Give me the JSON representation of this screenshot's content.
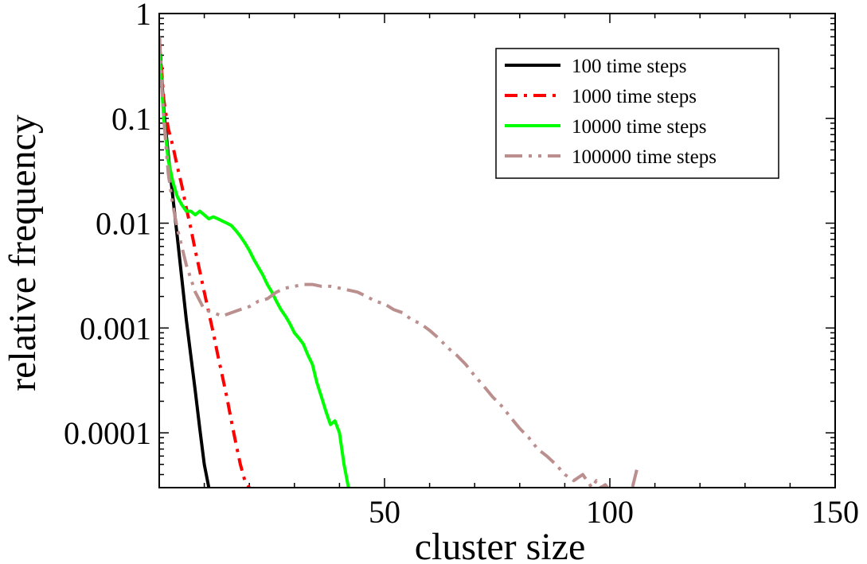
{
  "chart_data": {
    "type": "line",
    "title": "",
    "xlabel": "cluster size",
    "ylabel": "relative frequency",
    "xlim": [
      0,
      150
    ],
    "ylim": [
      3e-05,
      1
    ],
    "yscale": "log",
    "x_ticks": [
      50,
      100,
      150
    ],
    "x_tick_labels": [
      "50",
      "100",
      "150"
    ],
    "y_ticks": [
      0.0001,
      0.001,
      0.01,
      0.1,
      1
    ],
    "y_tick_labels": [
      "0.0001",
      "0.001",
      "0.01",
      "0.1",
      "1"
    ],
    "grid": false,
    "legend_position": "top-right",
    "series": [
      {
        "name": "100 time steps",
        "color": "#000000",
        "dash": "solid",
        "x": [
          0,
          1,
          2,
          3,
          4,
          5,
          6,
          7,
          8,
          9,
          10,
          11
        ],
        "y": [
          0.6,
          0.12,
          0.045,
          0.018,
          0.0075,
          0.003,
          0.0012,
          0.00055,
          0.00025,
          0.00011,
          5e-05,
          3e-05
        ]
      },
      {
        "name": "1000 time steps",
        "color": "#ff0000",
        "dash": "dashdot",
        "x": [
          0,
          1,
          2,
          3,
          4,
          5,
          6,
          7,
          8,
          9,
          10,
          11,
          12,
          13,
          14,
          15,
          16,
          17,
          18,
          19,
          20
        ],
        "y": [
          0.6,
          0.15,
          0.08,
          0.055,
          0.035,
          0.023,
          0.014,
          0.009,
          0.0055,
          0.0035,
          0.0022,
          0.0014,
          0.0009,
          0.00055,
          0.00035,
          0.00022,
          0.00013,
          8e-05,
          5e-05,
          3.5e-05,
          3e-05
        ]
      },
      {
        "name": "10000 time steps",
        "color": "#00ff00",
        "dash": "solid",
        "x": [
          0,
          1,
          2,
          3,
          4,
          5,
          6,
          7,
          8,
          9,
          10,
          11,
          12,
          13,
          14,
          15,
          16,
          17,
          18,
          19,
          20,
          21,
          22,
          23,
          24,
          25,
          26,
          27,
          28,
          29,
          30,
          31,
          32,
          33,
          34,
          35,
          36,
          37,
          38,
          39,
          40,
          41,
          42
        ],
        "y": [
          0.5,
          0.1,
          0.04,
          0.025,
          0.018,
          0.015,
          0.013,
          0.013,
          0.012,
          0.013,
          0.012,
          0.011,
          0.0115,
          0.011,
          0.0105,
          0.01,
          0.0095,
          0.0085,
          0.0075,
          0.0065,
          0.0055,
          0.0045,
          0.0038,
          0.0032,
          0.0026,
          0.0022,
          0.0018,
          0.0015,
          0.0013,
          0.0011,
          0.0009,
          0.0008,
          0.0007,
          0.00055,
          0.00045,
          0.0003,
          0.00022,
          0.00016,
          0.00012,
          0.00013,
          0.0001,
          5e-05,
          3e-05
        ]
      },
      {
        "name": "100000 time steps",
        "color": "#bc8f8f",
        "dash": "dashdotdot",
        "x": [
          0,
          1,
          2,
          3,
          4,
          5,
          6,
          8,
          10,
          12,
          14,
          16,
          18,
          20,
          22,
          24,
          26,
          28,
          30,
          32,
          34,
          36,
          38,
          40,
          42,
          44,
          46,
          48,
          50,
          52,
          54,
          56,
          58,
          60,
          62,
          64,
          66,
          68,
          70,
          72,
          74,
          76,
          78,
          80,
          82,
          84,
          86,
          88,
          90,
          92,
          94,
          96,
          97,
          98,
          99,
          100,
          101,
          102,
          103,
          104,
          105,
          106
        ],
        "y": [
          0.6,
          0.1,
          0.03,
          0.015,
          0.009,
          0.006,
          0.004,
          0.0022,
          0.0015,
          0.0014,
          0.0013,
          0.0014,
          0.0015,
          0.0016,
          0.0018,
          0.0019,
          0.0022,
          0.0024,
          0.0025,
          0.0026,
          0.0026,
          0.0025,
          0.0025,
          0.0024,
          0.0023,
          0.0022,
          0.002,
          0.0018,
          0.0017,
          0.0015,
          0.0014,
          0.0012,
          0.0011,
          0.00095,
          0.0008,
          0.00065,
          0.00055,
          0.00045,
          0.00035,
          0.00028,
          0.00022,
          0.00018,
          0.00014,
          0.00011,
          9e-05,
          7e-05,
          6e-05,
          5e-05,
          4e-05,
          3.5e-05,
          4e-05,
          3e-05,
          3.5e-05,
          3e-05,
          3.2e-05,
          2.8e-05,
          3e-05,
          2.8e-05,
          3e-05,
          2.8e-05,
          3e-05,
          4.5e-05
        ]
      }
    ]
  }
}
